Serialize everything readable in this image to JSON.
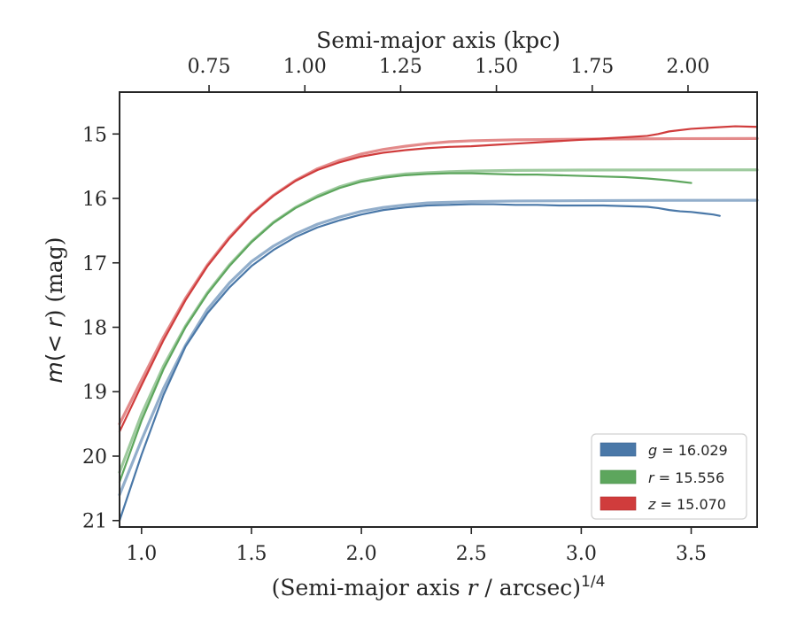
{
  "chart_data": {
    "type": "line",
    "xlabel": "(Semi-major axis r / arcsec)^1/4",
    "xlabel_main": "(Semi-major axis ",
    "xlabel_var": "r",
    "xlabel_unit": " / arcsec)",
    "xlabel_exp": "1/4",
    "ylabel": "m(<r) (mag)",
    "ylabel_main": "m",
    "ylabel_mid": "(< ",
    "ylabel_var": "r",
    "ylabel_tail": ") (mag)",
    "top_xlabel": "Semi-major axis (kpc)",
    "xlim": [
      0.9,
      3.8
    ],
    "ylim": [
      21.1,
      14.35
    ],
    "y_inverted": true,
    "kpc_per_x": 0.5738,
    "x_ticks": [
      1.0,
      1.5,
      2.0,
      2.5,
      3.0,
      3.5
    ],
    "x_tick_labels": [
      "1.0",
      "1.5",
      "2.0",
      "2.5",
      "3.0",
      "3.5"
    ],
    "y_ticks": [
      15,
      16,
      17,
      18,
      19,
      20,
      21
    ],
    "y_tick_labels": [
      "15",
      "16",
      "17",
      "18",
      "19",
      "20",
      "21"
    ],
    "top_ticks": [
      0.75,
      1.0,
      1.25,
      1.5,
      1.75,
      2.0
    ],
    "top_tick_labels": [
      "0.75",
      "1.00",
      "1.25",
      "1.50",
      "1.75",
      "2.00"
    ],
    "legend_position": "lower-right",
    "grid": false,
    "series": [
      {
        "name": "g",
        "legend_label": "= 16.029",
        "color": "#4a78a8",
        "model_total": 16.029,
        "data": [
          [
            0.9,
            21.0
          ],
          [
            1.0,
            19.98
          ],
          [
            1.1,
            19.05
          ],
          [
            1.2,
            18.3
          ],
          [
            1.3,
            17.78
          ],
          [
            1.4,
            17.38
          ],
          [
            1.5,
            17.05
          ],
          [
            1.6,
            16.8
          ],
          [
            1.7,
            16.6
          ],
          [
            1.8,
            16.45
          ],
          [
            1.9,
            16.34
          ],
          [
            2.0,
            16.25
          ],
          [
            2.1,
            16.18
          ],
          [
            2.2,
            16.14
          ],
          [
            2.3,
            16.11
          ],
          [
            2.4,
            16.1
          ],
          [
            2.5,
            16.09
          ],
          [
            2.6,
            16.09
          ],
          [
            2.7,
            16.1
          ],
          [
            2.8,
            16.1
          ],
          [
            2.9,
            16.11
          ],
          [
            3.0,
            16.11
          ],
          [
            3.1,
            16.11
          ],
          [
            3.2,
            16.12
          ],
          [
            3.3,
            16.13
          ],
          [
            3.35,
            16.15
          ],
          [
            3.4,
            16.18
          ],
          [
            3.45,
            16.2
          ],
          [
            3.5,
            16.21
          ],
          [
            3.55,
            16.23
          ],
          [
            3.6,
            16.25
          ],
          [
            3.63,
            16.27
          ]
        ],
        "model": [
          [
            0.9,
            20.6
          ],
          [
            1.0,
            19.75
          ],
          [
            1.1,
            18.95
          ],
          [
            1.2,
            18.28
          ],
          [
            1.3,
            17.72
          ],
          [
            1.4,
            17.31
          ],
          [
            1.5,
            16.98
          ],
          [
            1.6,
            16.74
          ],
          [
            1.7,
            16.55
          ],
          [
            1.8,
            16.4
          ],
          [
            1.9,
            16.29
          ],
          [
            2.0,
            16.2
          ],
          [
            2.1,
            16.14
          ],
          [
            2.2,
            16.1
          ],
          [
            2.3,
            16.07
          ],
          [
            2.4,
            16.06
          ],
          [
            2.5,
            16.05
          ],
          [
            2.7,
            16.04
          ],
          [
            3.0,
            16.035
          ],
          [
            3.4,
            16.03
          ],
          [
            3.8,
            16.029
          ]
        ]
      },
      {
        "name": "r",
        "legend_label": "= 15.556",
        "color": "#5da65d",
        "model_total": 15.556,
        "data": [
          [
            0.9,
            20.4
          ],
          [
            1.0,
            19.45
          ],
          [
            1.1,
            18.65
          ],
          [
            1.2,
            18.0
          ],
          [
            1.3,
            17.48
          ],
          [
            1.4,
            17.05
          ],
          [
            1.5,
            16.68
          ],
          [
            1.6,
            16.38
          ],
          [
            1.7,
            16.15
          ],
          [
            1.8,
            15.98
          ],
          [
            1.9,
            15.84
          ],
          [
            2.0,
            15.74
          ],
          [
            2.1,
            15.68
          ],
          [
            2.2,
            15.64
          ],
          [
            2.3,
            15.62
          ],
          [
            2.4,
            15.61
          ],
          [
            2.5,
            15.61
          ],
          [
            2.6,
            15.62
          ],
          [
            2.7,
            15.63
          ],
          [
            2.8,
            15.63
          ],
          [
            2.9,
            15.64
          ],
          [
            3.0,
            15.65
          ],
          [
            3.1,
            15.66
          ],
          [
            3.2,
            15.67
          ],
          [
            3.3,
            15.69
          ],
          [
            3.4,
            15.72
          ],
          [
            3.45,
            15.74
          ],
          [
            3.5,
            15.76
          ]
        ],
        "model": [
          [
            0.9,
            20.25
          ],
          [
            1.0,
            19.35
          ],
          [
            1.1,
            18.6
          ],
          [
            1.2,
            17.98
          ],
          [
            1.3,
            17.46
          ],
          [
            1.4,
            17.03
          ],
          [
            1.5,
            16.67
          ],
          [
            1.6,
            16.37
          ],
          [
            1.7,
            16.14
          ],
          [
            1.8,
            15.96
          ],
          [
            1.9,
            15.82
          ],
          [
            2.0,
            15.72
          ],
          [
            2.1,
            15.66
          ],
          [
            2.2,
            15.62
          ],
          [
            2.3,
            15.6
          ],
          [
            2.4,
            15.585
          ],
          [
            2.5,
            15.575
          ],
          [
            2.7,
            15.565
          ],
          [
            3.0,
            15.56
          ],
          [
            3.4,
            15.557
          ],
          [
            3.8,
            15.556
          ]
        ]
      },
      {
        "name": "z",
        "legend_label": "= 15.070",
        "color": "#d03c3c",
        "model_total": 15.07,
        "data": [
          [
            0.9,
            19.62
          ],
          [
            1.0,
            18.9
          ],
          [
            1.1,
            18.2
          ],
          [
            1.2,
            17.58
          ],
          [
            1.3,
            17.05
          ],
          [
            1.4,
            16.62
          ],
          [
            1.5,
            16.25
          ],
          [
            1.6,
            15.96
          ],
          [
            1.7,
            15.73
          ],
          [
            1.8,
            15.56
          ],
          [
            1.9,
            15.44
          ],
          [
            2.0,
            15.35
          ],
          [
            2.1,
            15.29
          ],
          [
            2.2,
            15.25
          ],
          [
            2.3,
            15.22
          ],
          [
            2.4,
            15.2
          ],
          [
            2.5,
            15.19
          ],
          [
            2.6,
            15.17
          ],
          [
            2.7,
            15.15
          ],
          [
            2.8,
            15.13
          ],
          [
            2.9,
            15.11
          ],
          [
            3.0,
            15.09
          ],
          [
            3.1,
            15.07
          ],
          [
            3.2,
            15.05
          ],
          [
            3.3,
            15.03
          ],
          [
            3.35,
            15.0
          ],
          [
            3.4,
            14.96
          ],
          [
            3.5,
            14.92
          ],
          [
            3.6,
            14.9
          ],
          [
            3.7,
            14.88
          ],
          [
            3.8,
            14.89
          ]
        ],
        "model": [
          [
            0.9,
            19.5
          ],
          [
            1.0,
            18.82
          ],
          [
            1.1,
            18.15
          ],
          [
            1.2,
            17.55
          ],
          [
            1.3,
            17.03
          ],
          [
            1.4,
            16.6
          ],
          [
            1.5,
            16.24
          ],
          [
            1.6,
            15.95
          ],
          [
            1.7,
            15.72
          ],
          [
            1.8,
            15.54
          ],
          [
            1.9,
            15.41
          ],
          [
            2.0,
            15.31
          ],
          [
            2.1,
            15.24
          ],
          [
            2.2,
            15.19
          ],
          [
            2.3,
            15.15
          ],
          [
            2.4,
            15.12
          ],
          [
            2.5,
            15.105
          ],
          [
            2.7,
            15.09
          ],
          [
            3.0,
            15.08
          ],
          [
            3.4,
            15.073
          ],
          [
            3.8,
            15.07
          ]
        ]
      }
    ]
  }
}
